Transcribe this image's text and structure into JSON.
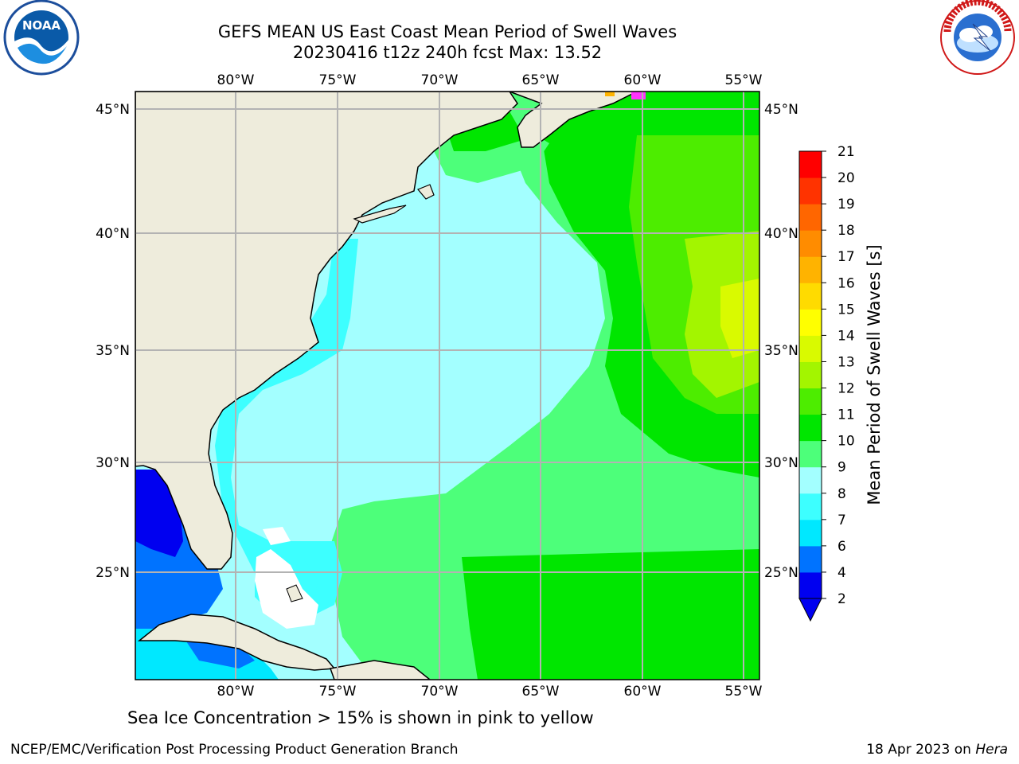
{
  "header": {
    "title_line1": "GEFS MEAN US East Coast Mean Period of Swell Waves",
    "title_line2": "20230416 t12z 240h fcst   Max: 13.52"
  },
  "logos": {
    "left": {
      "text": "NOAA",
      "ring_text": "NATIONAL OCEANIC AND ATMOSPHERIC ADMINISTRATION · U.S. DEPARTMENT OF COMMERCE"
    },
    "right": {
      "ring_text": "NATIONAL WEATHER SERVICE"
    }
  },
  "map": {
    "lon_labels": [
      "80°W",
      "75°W",
      "70°W",
      "65°W",
      "60°W",
      "55°W"
    ],
    "lat_labels": [
      "45°N",
      "40°N",
      "35°N",
      "30°N",
      "25°N"
    ],
    "land_color": "#eeecdc",
    "grid_color": "#b3b3b3"
  },
  "colorbar": {
    "label": "Mean Period of Swell Waves [s]",
    "ticks": [
      "2",
      "4",
      "6",
      "7",
      "8",
      "9",
      "10",
      "11",
      "12",
      "13",
      "14",
      "15",
      "16",
      "17",
      "18",
      "19",
      "20",
      "21"
    ],
    "colors": [
      "#0000f0",
      "#0073ff",
      "#00e8ff",
      "#3dffff",
      "#a3ffff",
      "#4dff7a",
      "#00e600",
      "#4ded00",
      "#a3f500",
      "#d9fa00",
      "#ffff00",
      "#ffdb00",
      "#ffb300",
      "#ff8c00",
      "#ff6600",
      "#ff3300",
      "#ff0000"
    ]
  },
  "caption": "Sea Ice Concentration > 15% is shown in pink to yellow",
  "footer": {
    "left": "NCEP/EMC/Verification Post Processing Product Generation Branch",
    "right_date": "18 Apr 2023 on",
    "right_host": "Hera"
  }
}
